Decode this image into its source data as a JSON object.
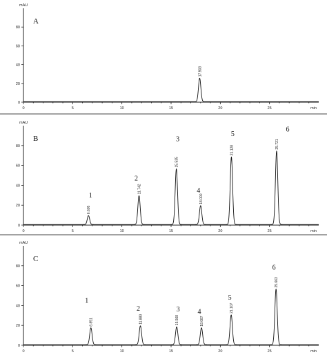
{
  "chart_data": [
    {
      "type": "line",
      "panel_label": "A",
      "y_unit": "mAU",
      "x_unit": "min",
      "xlim": [
        0,
        30
      ],
      "ylim": [
        0,
        100
      ],
      "x_ticks": [
        0,
        5,
        10,
        15,
        20,
        25
      ],
      "y_ticks": [
        0,
        20,
        40,
        60,
        80
      ],
      "peaks": [
        {
          "number": "",
          "rt": 17.903,
          "rt_label": "17.903",
          "height": 25
        }
      ]
    },
    {
      "type": "line",
      "panel_label": "B",
      "y_unit": "mAU",
      "x_unit": "min",
      "xlim": [
        0,
        30
      ],
      "ylim": [
        0,
        100
      ],
      "x_ticks": [
        0,
        5,
        10,
        15,
        20,
        25
      ],
      "y_ticks": [
        0,
        20,
        40,
        60,
        80
      ],
      "peaks": [
        {
          "number": "1",
          "rt": 6.605,
          "rt_label": "6.605",
          "height": 9
        },
        {
          "number": "2",
          "rt": 11.742,
          "rt_label": "11.742",
          "height": 29
        },
        {
          "number": "3",
          "rt": 15.535,
          "rt_label": "15.535",
          "height": 56
        },
        {
          "number": "4",
          "rt": 18.0,
          "rt_label": "18.000",
          "height": 19
        },
        {
          "number": "5",
          "rt": 21.128,
          "rt_label": "21.128",
          "height": 68
        },
        {
          "number": "6",
          "rt": 25.721,
          "rt_label": "25.721",
          "height": 74
        }
      ]
    },
    {
      "type": "line",
      "panel_label": "C",
      "y_unit": "mAU",
      "x_unit": "min",
      "xlim": [
        0,
        30
      ],
      "ylim": [
        0,
        100
      ],
      "x_ticks": [
        0,
        5,
        10,
        15,
        20,
        25
      ],
      "y_ticks": [
        0,
        20,
        40,
        60,
        80
      ],
      "peaks": [
        {
          "number": "1",
          "rt": 6.851,
          "rt_label": "6.851",
          "height": 17
        },
        {
          "number": "2",
          "rt": 11.88,
          "rt_label": "11.880",
          "height": 19
        },
        {
          "number": "3",
          "rt": 15.568,
          "rt_label": "15.568",
          "height": 18
        },
        {
          "number": "4",
          "rt": 18.087,
          "rt_label": "18.087",
          "height": 17
        },
        {
          "number": "5",
          "rt": 21.107,
          "rt_label": "21.107",
          "height": 30
        },
        {
          "number": "6",
          "rt": 25.663,
          "rt_label": "25.663",
          "height": 56
        }
      ]
    }
  ]
}
